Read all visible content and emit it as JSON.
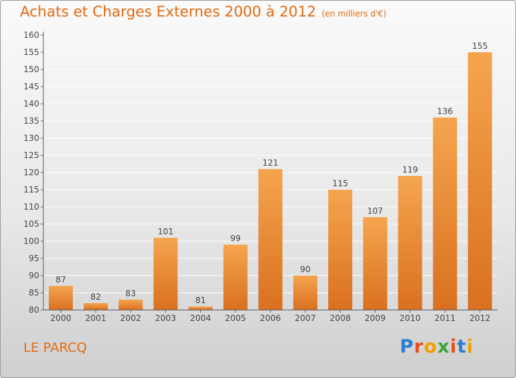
{
  "header": {
    "title": "Achats et Charges Externes 2000 à 2012",
    "unit": "(en milliers d'€)"
  },
  "footer": {
    "place": "LE PARCQ",
    "logo_letters": [
      "P",
      "r",
      "o",
      "x",
      "i",
      "t",
      "i"
    ],
    "logo_colors": [
      "#2a7fd4",
      "#e8501a",
      "#f2a000",
      "#3aa637",
      "#e8501a",
      "#2a7fd4",
      "#f2a000"
    ]
  },
  "chart_data": {
    "type": "bar",
    "title": "Achats et Charges Externes 2000 à 2012",
    "subtitle": "(en milliers d'€)",
    "categories": [
      "2000",
      "2001",
      "2002",
      "2003",
      "2004",
      "2005",
      "2006",
      "2007",
      "2008",
      "2009",
      "2010",
      "2011",
      "2012"
    ],
    "values": [
      87,
      82,
      83,
      101,
      81,
      99,
      121,
      90,
      115,
      107,
      119,
      136,
      155
    ],
    "ylim": [
      80,
      160
    ],
    "ytick_step": 5,
    "grid": true,
    "bar_color_top": "#f5a54e",
    "bar_color_bottom": "#d9701f",
    "text_color": "#444444"
  }
}
